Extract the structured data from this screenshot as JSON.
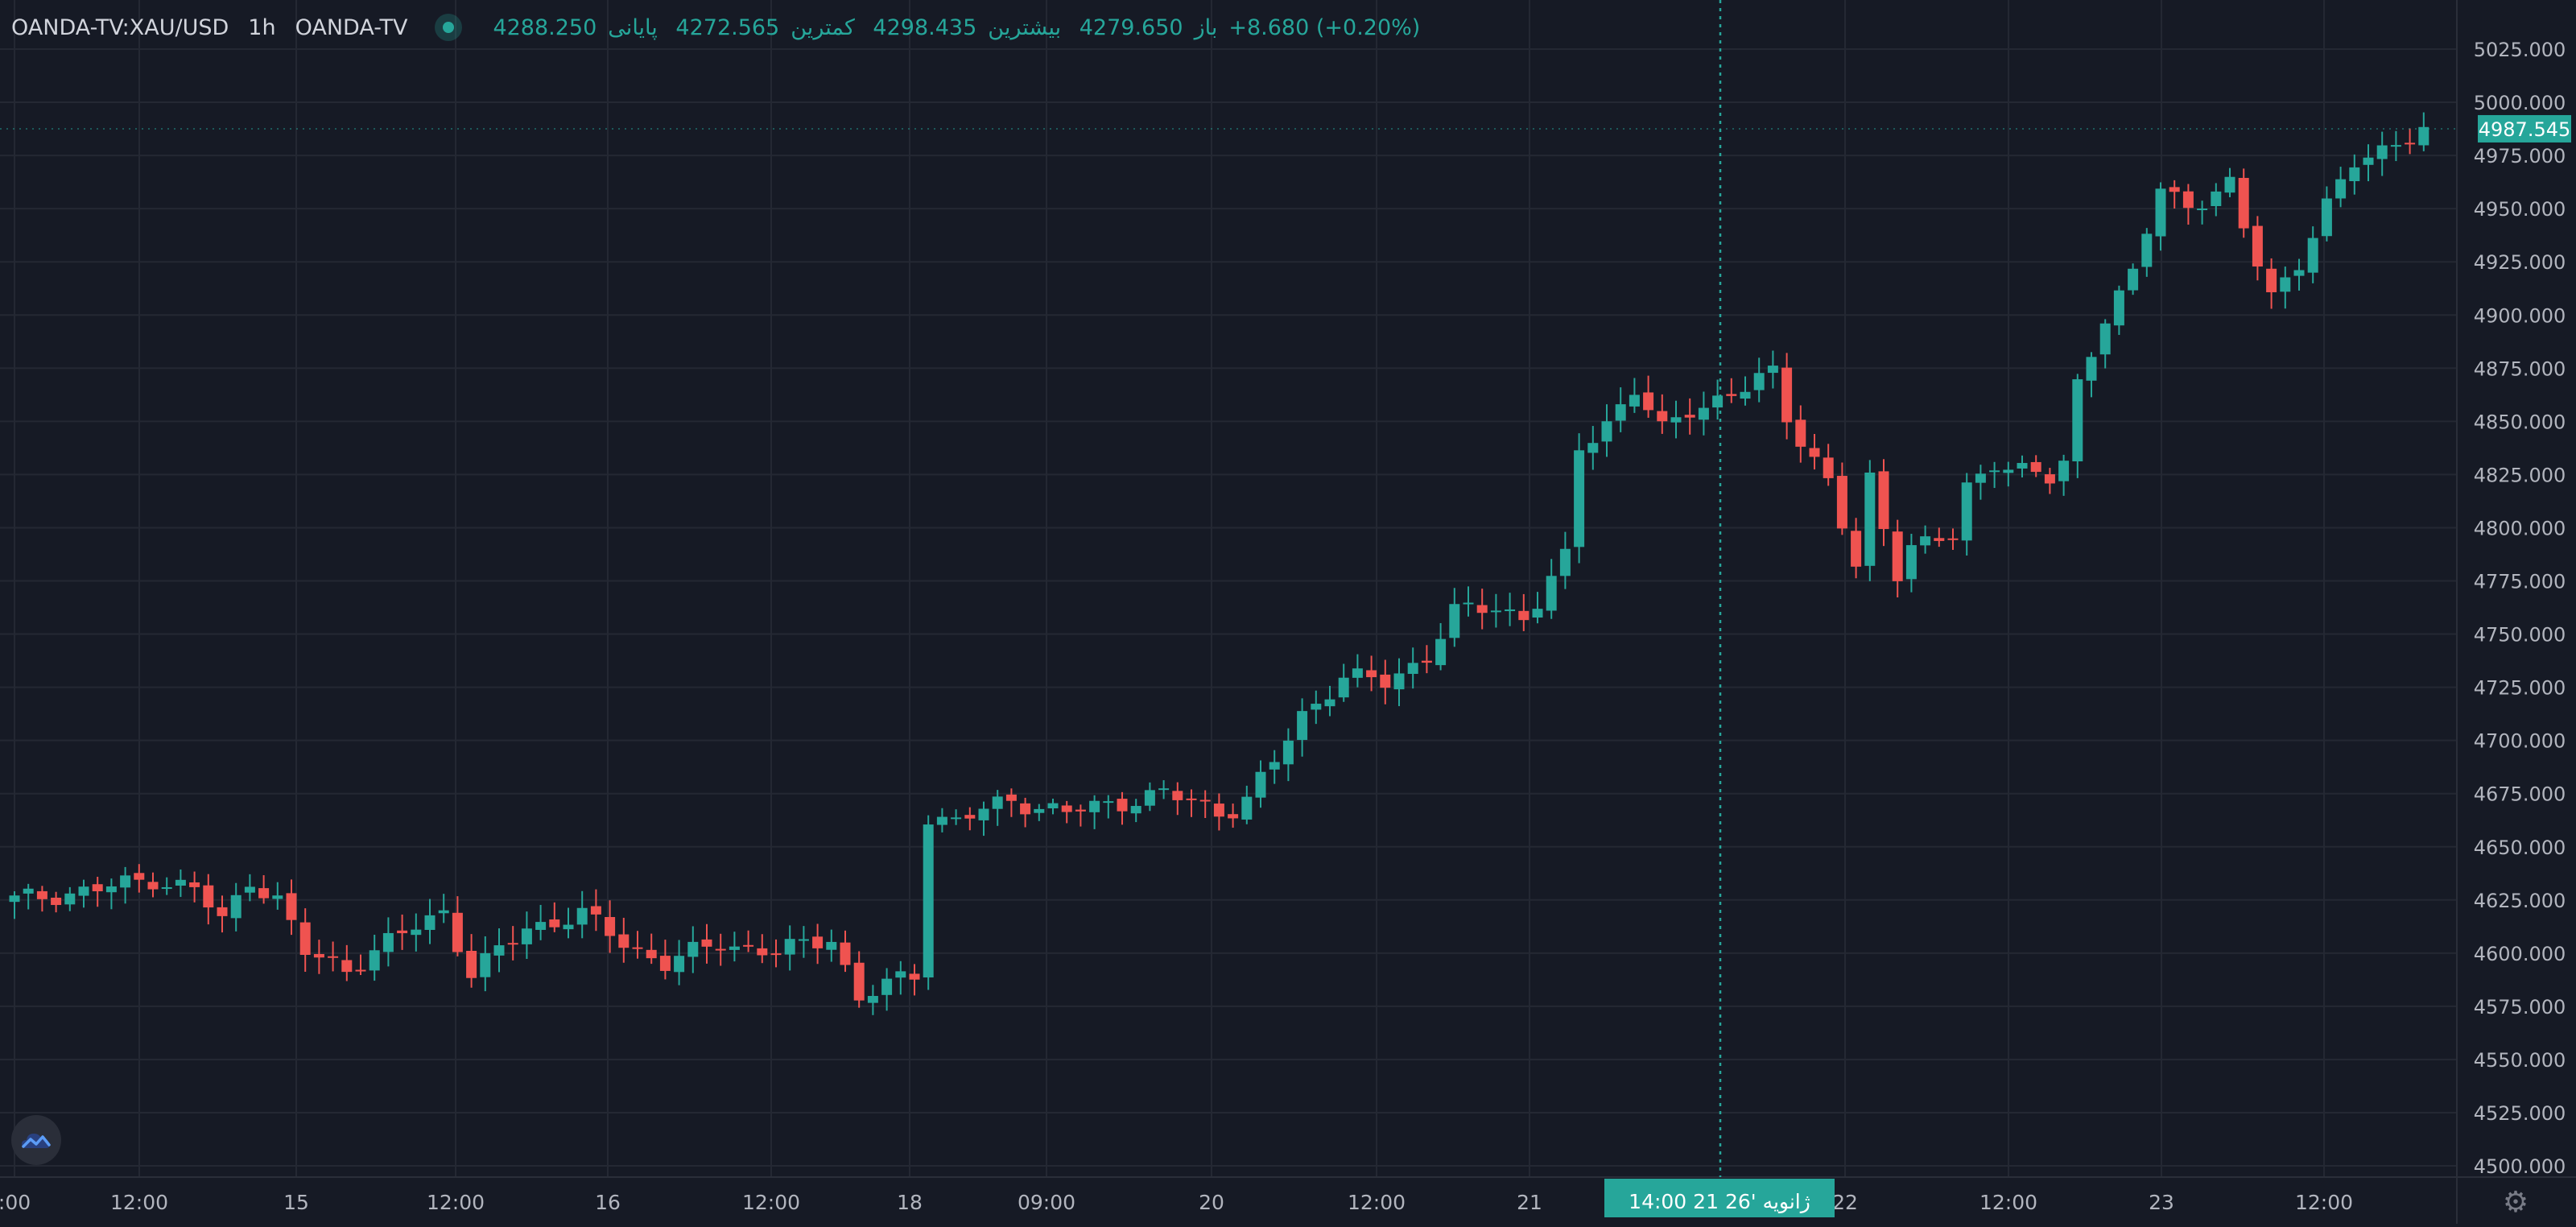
{
  "legend": {
    "symbol": "OANDA-TV:XAU/USD",
    "timeframe": "1h",
    "source": "OANDA-TV",
    "open_label": "باز",
    "open": "4279.650",
    "high_label": "بیشترین",
    "high": "4298.435",
    "low_label": "کمترین",
    "low": "4272.565",
    "close_label": "پایانی",
    "close": "4288.250",
    "change": "+8.680 (+0.20%)"
  },
  "crosshair": {
    "time_label": "21 ژانویه '26",
    "time_suffix": "14:00"
  },
  "colors": {
    "background": "#161a25",
    "grid": "#242833",
    "up": "#26a69a",
    "down": "#ef5350",
    "text": "#b2b5be",
    "crosshair": "#26a69a"
  },
  "icons": {
    "logo": "tradingview-cloud-icon",
    "settings": "gear-icon"
  },
  "chart_data": {
    "type": "candlestick",
    "title": "",
    "interval": "1h",
    "ylim": [
      4490,
      5035
    ],
    "y_ticks": [
      "4500.000",
      "4525.000",
      "4550.000",
      "4575.000",
      "4600.000",
      "4625.000",
      "4650.000",
      "4675.000",
      "4700.000",
      "4725.000",
      "4750.000",
      "4775.000",
      "4800.000",
      "4825.000",
      "4850.000",
      "4875.000",
      "4900.000",
      "4925.000",
      "4950.000",
      "4975.000",
      "5000.000",
      "5025.000"
    ],
    "x_ticks": [
      ":00",
      "12:00",
      "15",
      "12:00",
      "16",
      "12:00",
      "18",
      "09:00",
      "20",
      "12:00",
      "21",
      "22",
      "12:00",
      "23",
      "12:00"
    ],
    "last_price": "4987.545",
    "grid": true,
    "anchors": [
      [
        0,
        4625
      ],
      [
        6,
        4630
      ],
      [
        10,
        4635
      ],
      [
        13,
        4630
      ],
      [
        15,
        4615
      ],
      [
        17,
        4635
      ],
      [
        19,
        4625
      ],
      [
        21,
        4600
      ],
      [
        24,
        4593
      ],
      [
        27,
        4605
      ],
      [
        31,
        4620
      ],
      [
        33,
        4590
      ],
      [
        37,
        4612
      ],
      [
        41,
        4618
      ],
      [
        44,
        4605
      ],
      [
        47,
        4595
      ],
      [
        51,
        4605
      ],
      [
        55,
        4600
      ],
      [
        59,
        4608
      ],
      [
        61,
        4578
      ],
      [
        63,
        4585
      ],
      [
        65,
        4590
      ],
      [
        66,
        4665
      ],
      [
        68,
        4662
      ],
      [
        72,
        4672
      ],
      [
        76,
        4666
      ],
      [
        79,
        4670
      ],
      [
        83,
        4675
      ],
      [
        87,
        4667
      ],
      [
        88,
        4668
      ],
      [
        89,
        4672
      ],
      [
        91,
        4690
      ],
      [
        93,
        4712
      ],
      [
        96,
        4730
      ],
      [
        99,
        4727
      ],
      [
        102,
        4740
      ],
      [
        104,
        4760
      ],
      [
        107,
        4763
      ],
      [
        109,
        4758
      ],
      [
        110,
        4765
      ],
      [
        112,
        4785
      ],
      [
        113,
        4837
      ],
      [
        115,
        4850
      ],
      [
        117,
        4865
      ],
      [
        119,
        4845
      ],
      [
        121,
        4856
      ],
      [
        125,
        4865
      ],
      [
        127,
        4873
      ],
      [
        128,
        4853
      ],
      [
        129,
        4842
      ],
      [
        131,
        4822
      ],
      [
        133,
        4780
      ],
      [
        134,
        4822
      ],
      [
        136,
        4780
      ],
      [
        137,
        4792
      ],
      [
        140,
        4795
      ],
      [
        141,
        4818
      ],
      [
        143,
        4832
      ],
      [
        147,
        4822
      ],
      [
        148,
        4830
      ],
      [
        149,
        4868
      ],
      [
        151,
        4900
      ],
      [
        153,
        4918
      ],
      [
        155,
        4960
      ],
      [
        157,
        4952
      ],
      [
        160,
        4960
      ],
      [
        161,
        4940
      ],
      [
        163,
        4910
      ],
      [
        165,
        4925
      ],
      [
        167,
        4950
      ],
      [
        169,
        4972
      ],
      [
        172,
        4982
      ],
      [
        174,
        4985
      ]
    ]
  }
}
